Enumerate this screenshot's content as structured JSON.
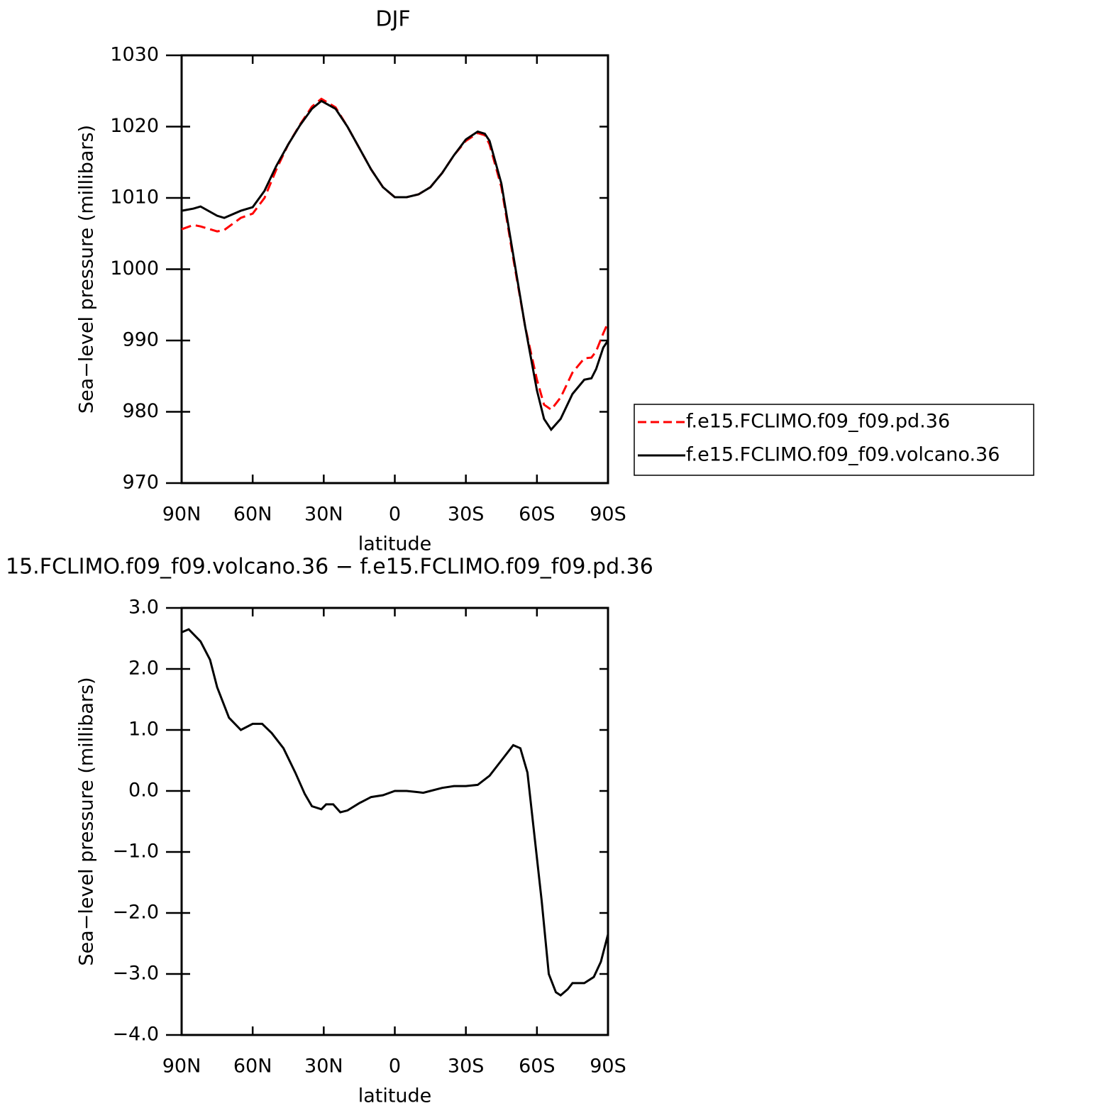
{
  "chart_data": [
    {
      "type": "line",
      "title": "DJF",
      "xlabel": "latitude",
      "ylabel": "Sea−level pressure (millibars)",
      "x": [
        90,
        85,
        82,
        75,
        72,
        65,
        60,
        55,
        50,
        45,
        40,
        35,
        31,
        25,
        20,
        15,
        10,
        5,
        0,
        -5,
        -10,
        -15,
        -20,
        -25,
        -30,
        -35,
        -38,
        -40,
        -45,
        -50,
        -55,
        -60,
        -63,
        -66,
        -70,
        -75,
        -80,
        -83,
        -85,
        -88,
        -90
      ],
      "series": [
        {
          "name": "f.e15.FCLIMO.f09_f09.pd.36",
          "color": "#ff0000",
          "line_style": "dashed",
          "values": [
            1005.6,
            1006.2,
            1006.0,
            1005.3,
            1005.5,
            1007.2,
            1007.8,
            1010,
            1014,
            1017.5,
            1020.3,
            1022.8,
            1023.9,
            1022.7,
            1020,
            1017,
            1014,
            1011.5,
            1010.1,
            1010.1,
            1010.5,
            1011.5,
            1013.5,
            1016,
            1018,
            1019.1,
            1018.8,
            1017.5,
            1011.5,
            1001.5,
            992,
            984.5,
            981,
            980.3,
            982,
            985.5,
            987.5,
            987.6,
            988.5,
            991,
            992.5
          ]
        },
        {
          "name": "f.e15.FCLIMO.f09_f09.volcano.36",
          "color": "#000000",
          "line_style": "solid",
          "values": [
            1008.2,
            1008.5,
            1008.8,
            1007.5,
            1007.2,
            1008.2,
            1008.7,
            1011,
            1014.5,
            1017.5,
            1020.2,
            1022.5,
            1023.6,
            1022.5,
            1020,
            1017,
            1014,
            1011.5,
            1010.1,
            1010.1,
            1010.5,
            1011.5,
            1013.5,
            1016,
            1018.2,
            1019.3,
            1019,
            1018,
            1012,
            1002,
            992,
            983,
            979,
            977.5,
            979,
            982.5,
            984.5,
            984.7,
            986,
            989,
            990
          ]
        }
      ],
      "xlim": [
        90,
        -90
      ],
      "xticks": [
        {
          "value": 90,
          "label": "90N"
        },
        {
          "value": 60,
          "label": "60N"
        },
        {
          "value": 30,
          "label": "30N"
        },
        0,
        {
          "value": -30,
          "label": "30S"
        },
        {
          "value": -60,
          "label": "60S"
        },
        {
          "value": -90,
          "label": "90S"
        }
      ],
      "ylim": [
        970,
        1030
      ],
      "yticks": [
        970,
        980,
        990,
        1000,
        1010,
        1020,
        1030
      ],
      "legend": "right"
    },
    {
      "type": "line",
      "title": "15.FCLIMO.f09_f09.volcano.36 − f.e15.FCLIMO.f09_f09.pd.36",
      "xlabel": "latitude",
      "ylabel": "Sea−level pressure (millibars)",
      "x": [
        90,
        87,
        82,
        78,
        75,
        70,
        65,
        60,
        56,
        52,
        47,
        42,
        38,
        35,
        31,
        29,
        26,
        23,
        20,
        15,
        10,
        5,
        0,
        -5,
        -10,
        -12,
        -15,
        -20,
        -25,
        -30,
        -35,
        -40,
        -45,
        -50,
        -53,
        -56,
        -58,
        -62,
        -65,
        -68,
        -70,
        -73,
        -75,
        -80,
        -84,
        -87,
        -90
      ],
      "series": [
        {
          "color": "#000000",
          "line_style": "solid",
          "values": [
            2.6,
            2.65,
            2.45,
            2.15,
            1.7,
            1.2,
            1.0,
            1.1,
            1.1,
            0.95,
            0.7,
            0.3,
            -0.05,
            -0.25,
            -0.3,
            -0.22,
            -0.22,
            -0.35,
            -0.32,
            -0.2,
            -0.1,
            -0.07,
            0,
            0,
            -0.02,
            -0.03,
            0.0,
            0.05,
            0.08,
            0.08,
            0.1,
            0.25,
            0.5,
            0.75,
            0.7,
            0.3,
            -0.4,
            -1.8,
            -3.0,
            -3.3,
            -3.35,
            -3.25,
            -3.15,
            -3.15,
            -3.05,
            -2.8,
            -2.35
          ]
        }
      ],
      "xlim": [
        90,
        -90
      ],
      "xticks": [
        {
          "value": 90,
          "label": "90N"
        },
        {
          "value": 60,
          "label": "60N"
        },
        {
          "value": 30,
          "label": "30N"
        },
        0,
        {
          "value": -30,
          "label": "30S"
        },
        {
          "value": -60,
          "label": "60S"
        },
        {
          "value": -90,
          "label": "90S"
        }
      ],
      "ylim": [
        -4,
        3
      ],
      "yticks": [
        {
          "value": -4,
          "label": "−4.0"
        },
        {
          "value": -3,
          "label": "−3.0"
        },
        {
          "value": -2,
          "label": "−2.0"
        },
        {
          "value": -1,
          "label": "−1.0"
        },
        {
          "value": 0,
          "label": "0.0"
        },
        {
          "value": 1,
          "label": "1.0"
        },
        {
          "value": 2,
          "label": "2.0"
        },
        {
          "value": 3,
          "label": "3.0"
        }
      ]
    }
  ]
}
